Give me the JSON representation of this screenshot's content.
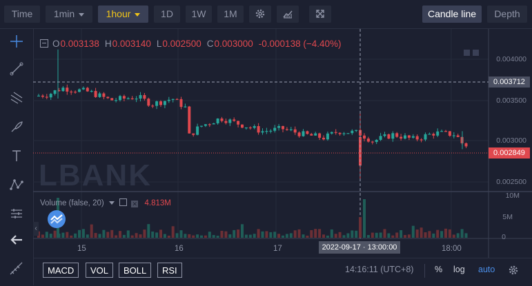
{
  "toolbar": {
    "time_label": "Time",
    "interval_1min": "1min",
    "interval_1hour": "1hour",
    "interval_1d": "1D",
    "interval_1w": "1W",
    "interval_1m": "1M",
    "candle_line_label": "Candle line",
    "depth_label": "Depth"
  },
  "legend": {
    "open_key": "O",
    "open": "0.003138",
    "high_key": "H",
    "high": "0.003140",
    "low_key": "L",
    "low": "0.002500",
    "close_key": "C",
    "close": "0.003000",
    "change": "-0.000138 (−4.40%)"
  },
  "price_axis": {
    "ticks": [
      "0.004000",
      "0.003500",
      "0.003000",
      "0.002500"
    ],
    "crosshair_price": "0.003712",
    "last_price": "0.002849"
  },
  "volume": {
    "legend": "Volume (false, 20)",
    "value": "4.813M",
    "ticks": [
      "10M",
      "5M",
      "0"
    ]
  },
  "time_axis": {
    "labels": [
      "15",
      "16",
      "17",
      "18:00"
    ],
    "crosshair_time": "2022-09-17 · 13:00:00"
  },
  "watermark": "LBANK",
  "bottom": {
    "indicators": [
      "MACD",
      "VOL",
      "BOLL",
      "RSI"
    ],
    "clock": "14:16:11 (UTC+8)",
    "percent": "%",
    "log": "log",
    "auto": "auto"
  },
  "colors": {
    "up": "#26a69a",
    "down": "#e0484e",
    "accent": "#f0c419",
    "background": "#1c2030"
  },
  "icons": {
    "settings": "gear-icon",
    "indicators": "chart-indicators-icon",
    "fullscreen": "fullscreen-icon",
    "crosshair": "crosshair-icon",
    "trendline": "trendline-icon",
    "fib": "fib-icon",
    "brush": "brush-icon",
    "text": "text-icon",
    "pattern": "pattern-icon",
    "measure": "measure-icon",
    "back": "back-arrow-icon"
  }
}
